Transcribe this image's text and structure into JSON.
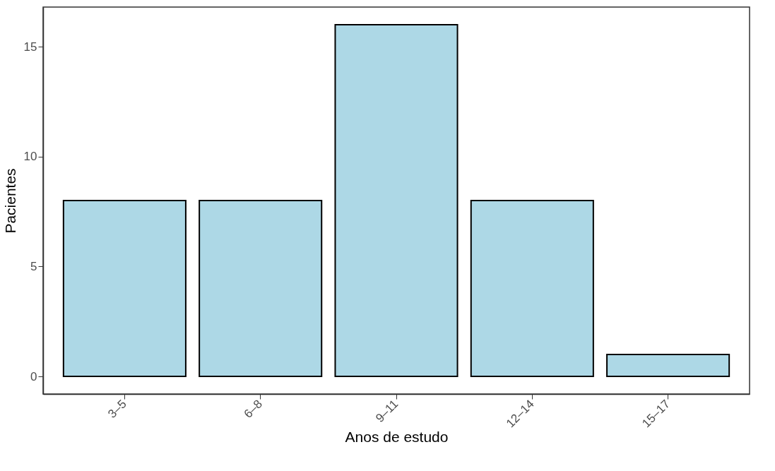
{
  "chart_data": {
    "type": "bar",
    "xlabel": "Anos de estudo",
    "ylabel": "Pacientes",
    "categories": [
      "3–5",
      "6–8",
      "9–11",
      "12–14",
      "15–17"
    ],
    "values": [
      8,
      8,
      16,
      8,
      1
    ],
    "color": "#add8e6",
    "ylim": [
      -0.8,
      16.8
    ],
    "yticks": [
      0,
      5,
      10,
      15
    ],
    "grid": false
  }
}
